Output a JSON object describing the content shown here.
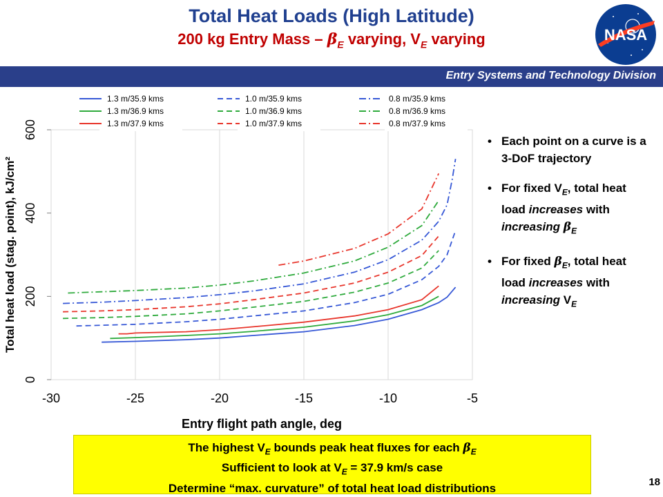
{
  "header": {
    "title": "Total Heat Loads (High Latitude)",
    "subtitle": {
      "a": "200 kg Entry Mass – ",
      "sym1": "β",
      "sub1": "E",
      "b": " varying, V",
      "sub2": "E",
      "c": " varying"
    },
    "logo_text": "NASA",
    "division": "Entry Systems and Technology Division"
  },
  "colors": {
    "blue": "#3557d6",
    "green": "#2eaa3c",
    "red": "#e8352b",
    "title": "#1f3f8f",
    "subtitle": "#c00000",
    "band": "#2a3f8a",
    "note_bg": "#ffff00"
  },
  "chart_data": {
    "type": "line",
    "xlabel": "Entry flight path angle, deg",
    "ylabel": "Total heat load (stag. point), kJ/cm²",
    "xlim": [
      -30,
      -5
    ],
    "ylim": [
      0,
      600
    ],
    "x_ticks": [
      -30,
      -25,
      -20,
      -15,
      -10,
      -5
    ],
    "y_ticks": [
      0,
      200,
      400,
      600
    ],
    "grid": "vertical",
    "legend_position": "top",
    "series": [
      {
        "name": "1.3 m/35.9 kms",
        "color": "blue",
        "dash": "solid",
        "points": [
          [
            -27,
            90
          ],
          [
            -25,
            92
          ],
          [
            -22,
            96
          ],
          [
            -20,
            100
          ],
          [
            -18,
            106
          ],
          [
            -15,
            115
          ],
          [
            -12,
            130
          ],
          [
            -10,
            145
          ],
          [
            -8,
            168
          ],
          [
            -7,
            185
          ],
          [
            -6.5,
            198
          ],
          [
            -6,
            222
          ]
        ]
      },
      {
        "name": "1.3 m/36.9 kms",
        "color": "green",
        "dash": "solid",
        "points": [
          [
            -26.5,
            99
          ],
          [
            -25,
            101
          ],
          [
            -22,
            106
          ],
          [
            -20,
            110
          ],
          [
            -18,
            116
          ],
          [
            -15,
            126
          ],
          [
            -12,
            141
          ],
          [
            -10,
            156
          ],
          [
            -8,
            178
          ],
          [
            -7,
            200
          ]
        ]
      },
      {
        "name": "1.3 m/37.9 kms",
        "color": "red",
        "dash": "solid",
        "points": [
          [
            -26,
            110
          ],
          [
            -25.5,
            110
          ],
          [
            -25,
            112
          ],
          [
            -22,
            115
          ],
          [
            -20,
            120
          ],
          [
            -18,
            127
          ],
          [
            -15,
            138
          ],
          [
            -12,
            153
          ],
          [
            -10,
            168
          ],
          [
            -8,
            192
          ],
          [
            -7,
            225
          ]
        ]
      },
      {
        "name": "1.0 m/35.9 kms",
        "color": "blue",
        "dash": "dashed",
        "points": [
          [
            -28.5,
            129
          ],
          [
            -25,
            133
          ],
          [
            -22,
            139
          ],
          [
            -20,
            145
          ],
          [
            -18,
            153
          ],
          [
            -15,
            165
          ],
          [
            -12,
            185
          ],
          [
            -10,
            205
          ],
          [
            -8,
            240
          ],
          [
            -7,
            272
          ],
          [
            -6.5,
            300
          ],
          [
            -6,
            358
          ]
        ]
      },
      {
        "name": "1.0 m/36.9 kms",
        "color": "green",
        "dash": "dashed",
        "points": [
          [
            -29.3,
            147
          ],
          [
            -27,
            149
          ],
          [
            -25,
            152
          ],
          [
            -22,
            158
          ],
          [
            -20,
            165
          ],
          [
            -18,
            174
          ],
          [
            -15,
            188
          ],
          [
            -12,
            210
          ],
          [
            -10,
            232
          ],
          [
            -8,
            268
          ],
          [
            -7,
            310
          ]
        ]
      },
      {
        "name": "1.0 m/37.9 kms",
        "color": "red",
        "dash": "dashed",
        "points": [
          [
            -29.3,
            163
          ],
          [
            -27,
            165
          ],
          [
            -25,
            168
          ],
          [
            -22,
            175
          ],
          [
            -20,
            182
          ],
          [
            -18,
            192
          ],
          [
            -15,
            208
          ],
          [
            -12,
            232
          ],
          [
            -10,
            258
          ],
          [
            -8,
            298
          ],
          [
            -7,
            345
          ]
        ]
      },
      {
        "name": "0.8 m/35.9 kms",
        "color": "blue",
        "dash": "dashdot",
        "points": [
          [
            -29.3,
            183
          ],
          [
            -27,
            186
          ],
          [
            -25,
            190
          ],
          [
            -22,
            197
          ],
          [
            -20,
            204
          ],
          [
            -18,
            213
          ],
          [
            -15,
            230
          ],
          [
            -12,
            258
          ],
          [
            -10,
            288
          ],
          [
            -8,
            335
          ],
          [
            -7,
            380
          ],
          [
            -6.5,
            420
          ],
          [
            -6.2,
            480
          ],
          [
            -6,
            530
          ]
        ]
      },
      {
        "name": "0.8 m/36.9 kms",
        "color": "green",
        "dash": "dashdot",
        "points": [
          [
            -29,
            208
          ],
          [
            -27,
            211
          ],
          [
            -25,
            214
          ],
          [
            -22,
            220
          ],
          [
            -20,
            227
          ],
          [
            -18,
            237
          ],
          [
            -15,
            256
          ],
          [
            -12,
            285
          ],
          [
            -10,
            318
          ],
          [
            -8,
            370
          ],
          [
            -7,
            430
          ]
        ]
      },
      {
        "name": "0.8 m/37.9 kms",
        "color": "red",
        "dash": "dashdot",
        "points": [
          [
            -16.5,
            275
          ],
          [
            -15,
            285
          ],
          [
            -12,
            315
          ],
          [
            -10,
            350
          ],
          [
            -8,
            410
          ],
          [
            -7,
            495
          ]
        ]
      }
    ]
  },
  "bullets": [
    {
      "parts": [
        {
          "t": "Each point on a curve is a 3-DoF trajectory"
        }
      ]
    },
    {
      "parts": [
        {
          "t": "For fixed V"
        },
        {
          "t": "E",
          "sub": true
        },
        {
          "t": ", total heat load "
        },
        {
          "t": "increases",
          "italic": true
        },
        {
          "t": " with "
        },
        {
          "t": "increasing",
          "italic": true
        },
        {
          "t": " "
        },
        {
          "t": "β",
          "sym": true
        },
        {
          "t": "E",
          "sub": true
        }
      ]
    },
    {
      "parts": [
        {
          "t": "For fixed "
        },
        {
          "t": "β",
          "sym": true
        },
        {
          "t": "E",
          "sub": true
        },
        {
          "t": ", total heat load "
        },
        {
          "t": "increases",
          "italic": true
        },
        {
          "t": " with "
        },
        {
          "t": "increasing",
          "italic": true
        },
        {
          "t": " V"
        },
        {
          "t": "E",
          "sub": true
        }
      ]
    }
  ],
  "note": {
    "line1": [
      {
        "t": "The highest V"
      },
      {
        "t": "E",
        "sub": true
      },
      {
        "t": " bounds peak heat fluxes for each "
      },
      {
        "t": "β",
        "sym": true
      },
      {
        "t": "E",
        "sub": true
      }
    ],
    "line2": [
      {
        "t": "Sufficient to look at V"
      },
      {
        "t": "E",
        "sub": true
      },
      {
        "t": " = 37.9 km/s case"
      }
    ],
    "line3": [
      {
        "t": "Determine “max. curvature” of total heat load distributions"
      }
    ]
  },
  "page_number": "18"
}
